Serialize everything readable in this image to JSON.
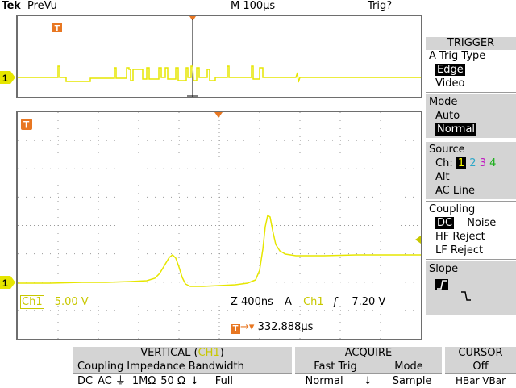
{
  "header": {
    "brand": "Tek",
    "mode": "PreVu",
    "timebase": "M 100µs",
    "trigger_state": "Trig?"
  },
  "waveform": {
    "channel_marker": "1",
    "trigger_marker": "T",
    "trace_color": "#e6e600"
  },
  "readout": {
    "channel": "Ch1",
    "volts_div": "5.00 V",
    "zoom": "Z 400ns",
    "trig_source_label": "A",
    "trig_channel": "Ch1",
    "trig_level": "7.20 V",
    "trig_position": "332.888µs"
  },
  "trigger_menu": {
    "title": "TRIGGER",
    "type_label": "A Trig Type",
    "type_options": [
      "Edge",
      "Video"
    ],
    "mode_label": "Mode",
    "mode_options": [
      "Auto",
      "Normal"
    ],
    "source_label": "Source",
    "source_ch_label": "Ch:",
    "source_channels": [
      "1",
      "2",
      "3",
      "4"
    ],
    "source_extra": [
      "Alt",
      "AC Line"
    ],
    "coupling_label": "Coupling",
    "coupling_options": [
      "DC",
      "Noise",
      "HF Reject",
      "LF Reject"
    ],
    "slope_label": "Slope"
  },
  "vertical_menu": {
    "title_prefix": "VERTICAL (",
    "title_channel": "CH1",
    "title_suffix": ")",
    "coupling_label": "Coupling",
    "coupling_dc": "DC",
    "coupling_ac": "AC",
    "impedance_label": "Impedance",
    "imp_1m": "1MΩ",
    "imp_50": "50 Ω",
    "bandwidth_label": "Bandwidth",
    "bandwidth_value": "Full"
  },
  "acquire_menu": {
    "title": "ACQUIRE",
    "fast_trig_label": "Fast Trig",
    "fast_trig_value": "Normal",
    "mode_label": "Mode",
    "mode_value": "Sample"
  },
  "cursor_menu": {
    "title": "CURSOR",
    "value": "Off",
    "options": "HBar VBar"
  }
}
